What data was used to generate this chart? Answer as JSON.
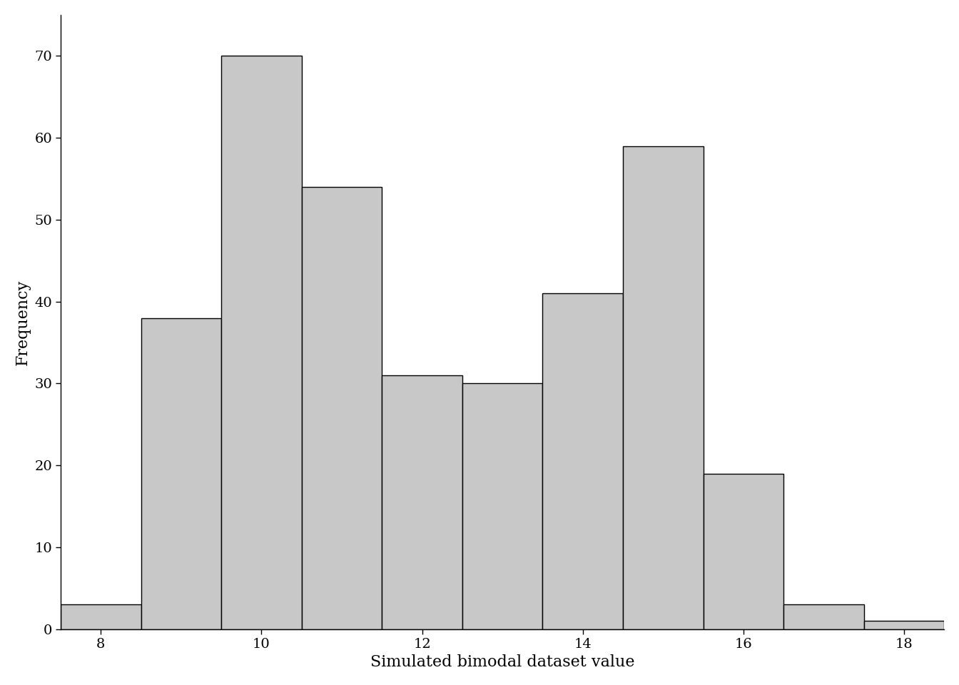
{
  "bin_edges": [
    7.5,
    8.5,
    9.5,
    10.5,
    11.5,
    12.5,
    13.5,
    14.5,
    15.5,
    16.5,
    17.5,
    18.5
  ],
  "frequencies": [
    3,
    38,
    70,
    54,
    31,
    30,
    41,
    59,
    19,
    3,
    1
  ],
  "bar_color": "#c8c8c8",
  "bar_edgecolor": "#000000",
  "xlabel": "Simulated bimodal dataset value",
  "ylabel": "Frequency",
  "xlim": [
    7.5,
    18.5
  ],
  "ylim": [
    0,
    75
  ],
  "xticks": [
    8,
    10,
    12,
    14,
    16,
    18
  ],
  "yticks": [
    0,
    10,
    20,
    30,
    40,
    50,
    60,
    70
  ],
  "background_color": "#ffffff",
  "xlabel_fontsize": 16,
  "ylabel_fontsize": 16,
  "tick_fontsize": 14,
  "linewidth": 1.0
}
